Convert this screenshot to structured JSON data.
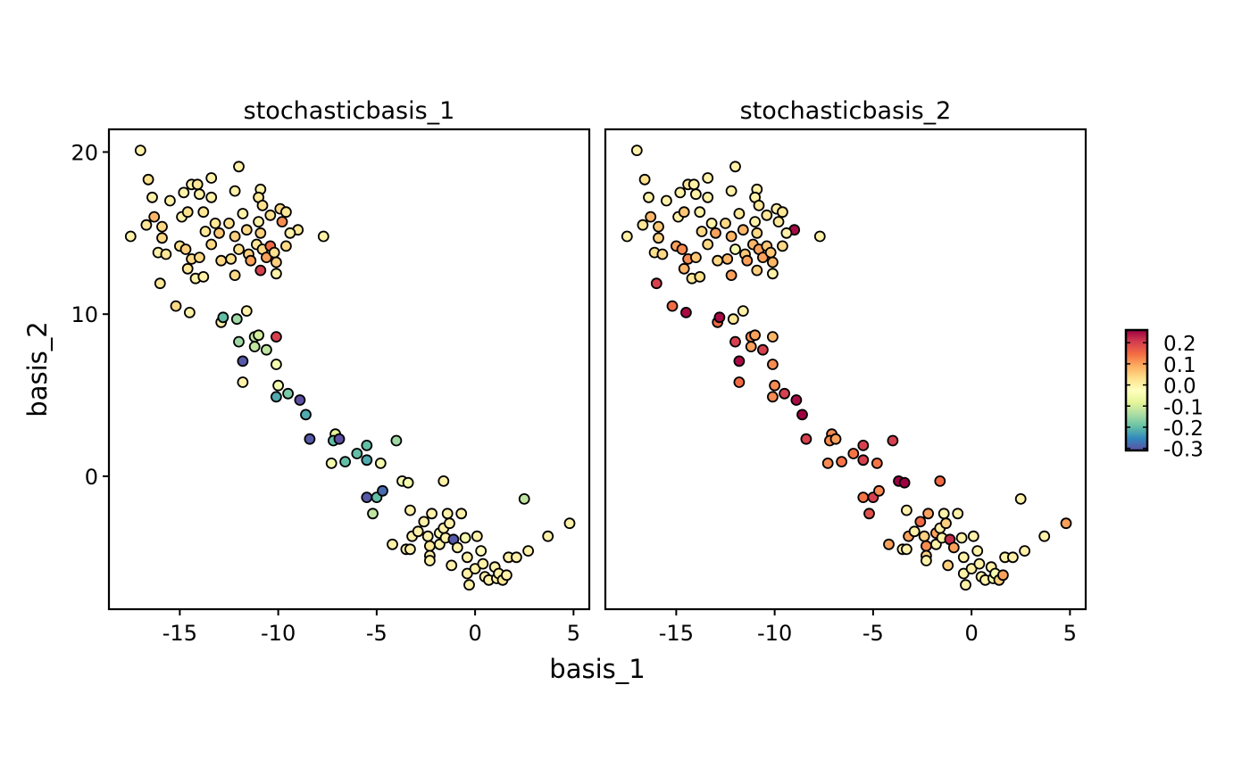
{
  "chart_data": {
    "type": "scatter",
    "xlabel": "basis_1",
    "ylabel": "basis_2",
    "xlim": [
      -18.6,
      5.8
    ],
    "ylim": [
      -8.2,
      21.4
    ],
    "xticks": [
      -15,
      -10,
      -5,
      0,
      5
    ],
    "xtick_labels": [
      "-15",
      "-10",
      "-5",
      "0",
      "5"
    ],
    "yticks": [
      0,
      10,
      20
    ],
    "ytick_labels": [
      "0",
      "10",
      "20"
    ],
    "grid": false,
    "panels": [
      "stochasticbasis_1",
      "stochasticbasis_2"
    ],
    "colorbar": {
      "limits": [
        -0.31,
        0.26
      ],
      "ticks": [
        0.2,
        0.1,
        0.0,
        -0.1,
        -0.2,
        -0.3
      ],
      "tick_labels": [
        "0.2",
        "0.1",
        "0.0",
        "-0.1",
        "-0.2",
        "-0.3"
      ],
      "palette": [
        "#5E4FA2",
        "#3288BD",
        "#66C2A5",
        "#ABDDA4",
        "#E6F598",
        "#FFFFBF",
        "#FEE08B",
        "#FDAE61",
        "#F46D43",
        "#D53E4F",
        "#9E0142"
      ],
      "placement": "right"
    },
    "point_fields": [
      "x",
      "y",
      "stochasticbasis_1",
      "stochasticbasis_2"
    ],
    "points": [
      [
        -17.0,
        20.1,
        0,
        0
      ],
      [
        -16.6,
        18.3,
        0.03,
        0.03
      ],
      [
        -16.4,
        17.2,
        0,
        0
      ],
      [
        -16.3,
        16.0,
        0.08,
        0.08
      ],
      [
        -17.5,
        14.8,
        0,
        0
      ],
      [
        -16.7,
        15.5,
        0.02,
        0.02
      ],
      [
        -15.9,
        15.4,
        0.04,
        0.06
      ],
      [
        -15.9,
        14.7,
        0.04,
        0.05
      ],
      [
        -16.1,
        13.8,
        0,
        0.03
      ],
      [
        -15.7,
        13.7,
        0.02,
        0.04
      ],
      [
        -16.0,
        11.9,
        0.02,
        0.2
      ],
      [
        -15.5,
        17.0,
        0,
        0
      ],
      [
        -14.9,
        16.0,
        0,
        0
      ],
      [
        -14.8,
        17.5,
        0,
        0
      ],
      [
        -14.4,
        18.0,
        0,
        0.02
      ],
      [
        -14.1,
        18.0,
        0.02,
        0
      ],
      [
        -14.0,
        17.4,
        0,
        0
      ],
      [
        -13.4,
        18.4,
        0,
        0
      ],
      [
        -13.4,
        17.2,
        0,
        0
      ],
      [
        -14.6,
        16.3,
        0.03,
        0.06
      ],
      [
        -13.8,
        16.3,
        0.02,
        0
      ],
      [
        -15.0,
        14.2,
        0.03,
        0.1
      ],
      [
        -14.7,
        14.0,
        0.05,
        0.12
      ],
      [
        -14.4,
        13.4,
        0.04,
        0.12
      ],
      [
        -14.0,
        13.5,
        0.04,
        0.06
      ],
      [
        -14.6,
        12.8,
        0.02,
        0.08
      ],
      [
        -14.2,
        12.2,
        0,
        0.02
      ],
      [
        -13.8,
        12.3,
        0,
        0.03
      ],
      [
        -13.7,
        15.1,
        0.02,
        0.04
      ],
      [
        -13.2,
        15.6,
        0.02,
        0
      ],
      [
        -13.0,
        15.0,
        0.06,
        0.1
      ],
      [
        -13.4,
        14.3,
        0.04,
        0.04
      ],
      [
        -12.5,
        15.6,
        0.03,
        0.04
      ],
      [
        -12.2,
        14.8,
        0.05,
        0.08
      ],
      [
        -12.9,
        13.3,
        0.04,
        0.04
      ],
      [
        -12.4,
        13.4,
        0.03,
        0.08
      ],
      [
        -12.2,
        12.4,
        0.04,
        0.1
      ],
      [
        -12.0,
        19.1,
        0,
        0
      ],
      [
        -12.2,
        17.6,
        0,
        0
      ],
      [
        -11.8,
        16.2,
        0,
        0.02
      ],
      [
        -11.6,
        15.2,
        0.04,
        0.08
      ],
      [
        -11.5,
        13.7,
        0.05,
        0.06
      ],
      [
        -11.4,
        13.3,
        0.1,
        0.1
      ],
      [
        -12.0,
        14.0,
        0.03,
        -0.05
      ],
      [
        -10.9,
        17.7,
        0,
        0
      ],
      [
        -11.0,
        17.2,
        0.02,
        0
      ],
      [
        -10.8,
        16.7,
        0.03,
        0.02
      ],
      [
        -11.0,
        15.7,
        0,
        0
      ],
      [
        -10.9,
        15.0,
        0.05,
        0.04
      ],
      [
        -11.1,
        14.3,
        0.02,
        0.08
      ],
      [
        -10.8,
        14.0,
        0.04,
        0.1
      ],
      [
        -10.9,
        12.7,
        0.2,
        0.05
      ],
      [
        -10.4,
        14.2,
        0.15,
        0.06
      ],
      [
        -10.4,
        16.1,
        0.03,
        0.02
      ],
      [
        -10.6,
        13.5,
        0.1,
        0.1
      ],
      [
        -9.9,
        16.5,
        0.04,
        0
      ],
      [
        -9.8,
        15.7,
        0.12,
        0.02
      ],
      [
        -9.6,
        16.3,
        0.02,
        0.02
      ],
      [
        -10.2,
        13.8,
        0.03,
        0.06
      ],
      [
        -10.1,
        13.2,
        0.05,
        0.08
      ],
      [
        -10.1,
        12.5,
        0,
        0
      ],
      [
        -9.6,
        14.2,
        0.04,
        0.04
      ],
      [
        -9.0,
        15.2,
        0.02,
        0.25
      ],
      [
        -9.4,
        15.0,
        0,
        0
      ],
      [
        -7.7,
        14.8,
        0,
        0
      ],
      [
        -15.2,
        10.5,
        0.04,
        0.15
      ],
      [
        -14.5,
        10.1,
        0,
        0.25
      ],
      [
        -12.9,
        9.5,
        0,
        0.15
      ],
      [
        -12.8,
        9.8,
        -0.2,
        0.25
      ],
      [
        -12.1,
        9.7,
        -0.15,
        0.02
      ],
      [
        -11.6,
        10.2,
        0,
        0
      ],
      [
        -12.0,
        8.3,
        -0.15,
        0.2
      ],
      [
        -11.8,
        7.1,
        -0.3,
        0.25
      ],
      [
        -11.8,
        5.8,
        0,
        0.15
      ],
      [
        -11.2,
        8.6,
        -0.12,
        0.12
      ],
      [
        -11.0,
        8.7,
        -0.1,
        0.1
      ],
      [
        -11.2,
        8.0,
        -0.12,
        0.1
      ],
      [
        -10.6,
        7.8,
        -0.12,
        0.2
      ],
      [
        -10.1,
        8.6,
        0.2,
        0.08
      ],
      [
        -10.1,
        6.9,
        -0.05,
        0.12
      ],
      [
        -10.0,
        5.6,
        -0.05,
        0.12
      ],
      [
        -10.1,
        4.9,
        -0.22,
        0.12
      ],
      [
        -9.5,
        5.1,
        -0.18,
        0.2
      ],
      [
        -8.9,
        4.7,
        -0.35,
        0.25
      ],
      [
        -8.6,
        3.8,
        -0.22,
        0.27
      ],
      [
        -8.4,
        2.3,
        -0.3,
        0.2
      ],
      [
        -7.3,
        0.8,
        -0.05,
        0.12
      ],
      [
        -7.1,
        2.6,
        -0.08,
        0.12
      ],
      [
        -7.2,
        2.2,
        -0.2,
        0.12
      ],
      [
        -6.9,
        2.3,
        -0.32,
        0.1
      ],
      [
        -6.6,
        0.9,
        -0.2,
        0.14
      ],
      [
        -6.0,
        1.4,
        -0.2,
        0.14
      ],
      [
        -5.5,
        1.0,
        -0.22,
        0.2
      ],
      [
        -5.5,
        1.9,
        -0.2,
        0.2
      ],
      [
        -4.8,
        0.8,
        -0.05,
        0.14
      ],
      [
        -4.0,
        2.2,
        -0.15,
        0.2
      ],
      [
        -5.5,
        -1.3,
        -0.3,
        0.14
      ],
      [
        -5.2,
        -2.3,
        -0.12,
        0.18
      ],
      [
        -5.0,
        -1.3,
        -0.2,
        0.2
      ],
      [
        -4.7,
        -0.9,
        -0.28,
        0.12
      ],
      [
        -3.7,
        -0.3,
        -0.05,
        0.27
      ],
      [
        -3.4,
        -0.4,
        -0.05,
        0.27
      ],
      [
        -1.6,
        -0.3,
        0,
        0.15
      ],
      [
        -3.3,
        -2.1,
        0,
        0
      ],
      [
        2.5,
        -1.4,
        -0.12,
        0
      ],
      [
        4.8,
        -2.9,
        0,
        0.1
      ],
      [
        3.7,
        -3.7,
        0,
        0
      ],
      [
        -4.2,
        -4.2,
        0,
        0.1
      ],
      [
        -3.5,
        -4.5,
        0,
        0
      ],
      [
        -3.3,
        -4.5,
        0,
        0
      ],
      [
        -3.2,
        -3.7,
        0,
        0.1
      ],
      [
        -2.9,
        -3.4,
        0,
        0
      ],
      [
        -2.6,
        -2.8,
        0,
        0.15
      ],
      [
        -2.2,
        -2.3,
        0,
        0.1
      ],
      [
        -2.4,
        -3.7,
        0,
        0.05
      ],
      [
        -2.3,
        -4.3,
        0.02,
        0.12
      ],
      [
        -2.3,
        -4.9,
        0,
        0.05
      ],
      [
        -2.3,
        -5.2,
        0,
        0
      ],
      [
        -1.8,
        -4.2,
        0,
        0
      ],
      [
        -1.8,
        -3.5,
        -0.05,
        0.1
      ],
      [
        -1.6,
        -3.2,
        0,
        0
      ],
      [
        -1.4,
        -2.3,
        0,
        0
      ],
      [
        -1.3,
        -2.9,
        0,
        0.05
      ],
      [
        -1.2,
        -5.5,
        0,
        0.05
      ],
      [
        -1.5,
        -3.8,
        0,
        0
      ],
      [
        -1.1,
        -3.9,
        -0.3,
        0.22
      ],
      [
        -0.9,
        -4.4,
        0,
        0.1
      ],
      [
        -0.7,
        -2.3,
        0,
        0
      ],
      [
        -0.5,
        -3.8,
        -0.05,
        0
      ],
      [
        -0.4,
        -5.0,
        0,
        0
      ],
      [
        -0.4,
        -6.0,
        0,
        0
      ],
      [
        -0.3,
        -6.7,
        0,
        0
      ],
      [
        0.0,
        -5.7,
        0,
        0
      ],
      [
        0.1,
        -3.7,
        0,
        0
      ],
      [
        0.3,
        -4.6,
        -0.02,
        0
      ],
      [
        0.4,
        -5.4,
        0,
        0
      ],
      [
        0.5,
        -6.2,
        0,
        0
      ],
      [
        0.7,
        -6.4,
        0,
        0
      ],
      [
        1.0,
        -5.6,
        0,
        0
      ],
      [
        1.1,
        -6.3,
        0,
        -0.05
      ],
      [
        1.2,
        -6.0,
        0,
        -0.05
      ],
      [
        1.4,
        -6.4,
        0.02,
        0.05
      ],
      [
        1.6,
        -6.1,
        0,
        0.1
      ],
      [
        1.7,
        -5.0,
        0,
        0
      ],
      [
        2.1,
        -5.0,
        0,
        0
      ],
      [
        2.7,
        -4.6,
        0,
        0
      ]
    ]
  }
}
